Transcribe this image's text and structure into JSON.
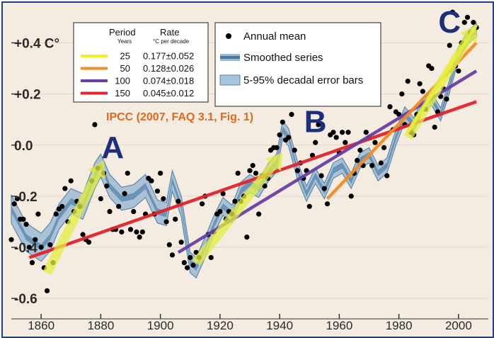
{
  "chart_data": {
    "type": "scatter",
    "x_ticks": [
      "1860",
      "1880",
      "1900",
      "1920",
      "1940",
      "1960",
      "1980",
      "2000"
    ],
    "y_ticks": [
      "+0.4 C°",
      "+0.2",
      "0.0",
      "-0.2",
      "-0.4",
      "-0.6"
    ],
    "y_tick_values": [
      0.4,
      0.2,
      0.0,
      -0.2,
      -0.4,
      -0.6
    ],
    "xlim": [
      1850,
      2010
    ],
    "ylim": [
      -0.68,
      0.54
    ],
    "source_label": "IPCC (2007, FAQ 3.1, Fig. 1)",
    "annotations": [
      {
        "text": "A",
        "x": 1884,
        "y": -0.05
      },
      {
        "text": "B",
        "x": 1952,
        "y": 0.05
      },
      {
        "text": "C",
        "x": 1997,
        "y": 0.44
      }
    ],
    "legend": [
      {
        "label": "Annual mean",
        "kind": "dot"
      },
      {
        "label": "Smoothed series",
        "kind": "band-line"
      },
      {
        "label": "5-95% decadal error bars",
        "kind": "band"
      }
    ],
    "trend_table": {
      "header_period": "Period",
      "header_rate": "Rate",
      "sub_period": "Years",
      "sub_rate": "°C  per decade",
      "rows": [
        {
          "period": "25",
          "rate": "0.177±0.052",
          "color": "#f5ee1e"
        },
        {
          "period": "50",
          "rate": "0.128±0.026",
          "color": "#f28c28"
        },
        {
          "period": "100",
          "rate": "0.074±0.018",
          "color": "#6a3fa5"
        },
        {
          "period": "150",
          "rate": "0.045±0.012",
          "color": "#e0242c"
        }
      ]
    },
    "trend_lines": [
      {
        "period": "150",
        "color": "#e0242c",
        "x": [
          1856,
          2006
        ],
        "y": [
          -0.44,
          0.17
        ]
      },
      {
        "period": "100",
        "color": "#6a3fa5",
        "x": [
          1906,
          2006
        ],
        "y": [
          -0.42,
          0.29
        ]
      },
      {
        "period": "50",
        "color": "#f28c28",
        "x": [
          1956,
          2006
        ],
        "y": [
          -0.21,
          0.4
        ]
      },
      {
        "period": "25",
        "color": "#f5ee1e",
        "x": [
          1983,
          2006
        ],
        "y": [
          0.05,
          0.47
        ]
      }
    ],
    "arrows": [
      {
        "x": [
          1862,
          1881
        ],
        "y": [
          -0.5,
          -0.06
        ]
      },
      {
        "x": [
          1912,
          1941
        ],
        "y": [
          -0.46,
          -0.03
        ]
      },
      {
        "x": [
          1983,
          2006
        ],
        "y": [
          0.03,
          0.47
        ]
      }
    ],
    "smoothed": {
      "x": [
        1850,
        1855,
        1860,
        1863,
        1866,
        1870,
        1874,
        1878,
        1880,
        1883,
        1887,
        1891,
        1895,
        1899,
        1902,
        1904,
        1907,
        1910,
        1912,
        1915,
        1918,
        1921,
        1924,
        1927,
        1930,
        1933,
        1936,
        1939,
        1941,
        1943,
        1946,
        1949,
        1952,
        1955,
        1958,
        1961,
        1964,
        1967,
        1970,
        1973,
        1976,
        1979,
        1982,
        1985,
        1988,
        1991,
        1994,
        1997,
        2000,
        2003,
        2006
      ],
      "y": [
        -0.25,
        -0.36,
        -0.4,
        -0.36,
        -0.28,
        -0.22,
        -0.24,
        -0.12,
        -0.08,
        -0.16,
        -0.21,
        -0.2,
        -0.16,
        -0.26,
        -0.27,
        -0.14,
        -0.24,
        -0.46,
        -0.48,
        -0.4,
        -0.31,
        -0.24,
        -0.27,
        -0.18,
        -0.15,
        -0.17,
        -0.11,
        -0.07,
        0.06,
        0.03,
        -0.1,
        -0.19,
        -0.12,
        -0.18,
        -0.1,
        -0.08,
        -0.14,
        -0.06,
        -0.04,
        -0.11,
        -0.08,
        0.03,
        0.12,
        0.08,
        0.16,
        0.18,
        0.12,
        0.23,
        0.36,
        0.42,
        0.45
      ],
      "err": [
        0.055,
        0.055,
        0.055,
        0.055,
        0.05,
        0.05,
        0.05,
        0.05,
        0.045,
        0.045,
        0.045,
        0.045,
        0.045,
        0.045,
        0.045,
        0.04,
        0.04,
        0.04,
        0.04,
        0.04,
        0.035,
        0.035,
        0.035,
        0.035,
        0.035,
        0.035,
        0.035,
        0.035,
        0.035,
        0.035,
        0.035,
        0.03,
        0.03,
        0.03,
        0.03,
        0.03,
        0.03,
        0.03,
        0.03,
        0.03,
        0.03,
        0.03,
        0.03,
        0.025,
        0.025,
        0.025,
        0.025,
        0.025,
        0.025,
        0.025,
        0.025
      ]
    },
    "annual_points": {
      "x": [
        1850,
        1851,
        1852,
        1853,
        1854,
        1855,
        1856,
        1857,
        1858,
        1859,
        1860,
        1861,
        1862,
        1863,
        1864,
        1865,
        1866,
        1867,
        1868,
        1869,
        1870,
        1871,
        1872,
        1873,
        1874,
        1875,
        1876,
        1877,
        1878,
        1879,
        1880,
        1881,
        1882,
        1883,
        1884,
        1885,
        1886,
        1887,
        1888,
        1889,
        1890,
        1891,
        1892,
        1893,
        1894,
        1895,
        1896,
        1897,
        1898,
        1899,
        1900,
        1901,
        1902,
        1903,
        1904,
        1905,
        1906,
        1907,
        1908,
        1909,
        1910,
        1911,
        1912,
        1913,
        1914,
        1915,
        1916,
        1917,
        1918,
        1919,
        1920,
        1921,
        1922,
        1923,
        1924,
        1925,
        1926,
        1927,
        1928,
        1929,
        1930,
        1931,
        1932,
        1933,
        1934,
        1935,
        1936,
        1937,
        1938,
        1939,
        1940,
        1941,
        1942,
        1943,
        1944,
        1945,
        1946,
        1947,
        1948,
        1949,
        1950,
        1951,
        1952,
        1953,
        1954,
        1955,
        1956,
        1957,
        1958,
        1959,
        1960,
        1961,
        1962,
        1963,
        1964,
        1965,
        1966,
        1967,
        1968,
        1969,
        1970,
        1971,
        1972,
        1973,
        1974,
        1975,
        1976,
        1977,
        1978,
        1979,
        1980,
        1981,
        1982,
        1983,
        1984,
        1985,
        1986,
        1987,
        1988,
        1989,
        1990,
        1991,
        1992,
        1993,
        1994,
        1995,
        1996,
        1997,
        1998,
        1999,
        2000,
        2001,
        2002,
        2003,
        2004,
        2005,
        2006
      ],
      "y": [
        -0.37,
        -0.23,
        -0.21,
        -0.29,
        -0.29,
        -0.31,
        -0.4,
        -0.46,
        -0.37,
        -0.27,
        -0.4,
        -0.48,
        -0.57,
        -0.39,
        -0.46,
        -0.27,
        -0.25,
        -0.24,
        -0.17,
        -0.3,
        -0.14,
        -0.26,
        -0.22,
        -0.24,
        -0.35,
        -0.37,
        -0.38,
        -0.14,
        0.08,
        -0.09,
        -0.21,
        -0.11,
        -0.16,
        -0.26,
        -0.33,
        -0.33,
        -0.24,
        -0.34,
        -0.19,
        -0.11,
        -0.33,
        -0.26,
        -0.34,
        -0.36,
        -0.34,
        -0.27,
        -0.13,
        -0.14,
        -0.27,
        -0.18,
        -0.11,
        -0.21,
        -0.3,
        -0.39,
        -0.43,
        -0.29,
        -0.22,
        -0.38,
        -0.46,
        -0.48,
        -0.44,
        -0.47,
        -0.42,
        -0.44,
        -0.23,
        -0.2,
        -0.35,
        -0.44,
        -0.34,
        -0.27,
        -0.26,
        -0.19,
        -0.29,
        -0.26,
        -0.27,
        -0.22,
        -0.11,
        -0.22,
        -0.2,
        -0.36,
        -0.1,
        -0.08,
        -0.11,
        -0.27,
        -0.12,
        -0.16,
        -0.13,
        -0.02,
        -0.01,
        -0.01,
        0.04,
        0.09,
        0.02,
        0.03,
        0.12,
        -0.02,
        -0.1,
        -0.07,
        -0.13,
        -0.1,
        -0.24,
        -0.04,
        0.01,
        0.08,
        -0.12,
        -0.17,
        -0.23,
        0.04,
        0.05,
        0.03,
        -0.03,
        0.05,
        0.01,
        0.05,
        -0.2,
        -0.11,
        -0.06,
        -0.02,
        -0.08,
        0.05,
        0.03,
        -0.08,
        0.01,
        0.16,
        -0.07,
        -0.01,
        -0.12,
        0.15,
        0.06,
        0.13,
        0.12,
        0.2,
        0.08,
        0.25,
        0.05,
        0.04,
        0.12,
        0.24,
        0.21,
        0.14,
        0.31,
        0.3,
        0.07,
        0.13,
        0.19,
        0.22,
        0.18,
        0.39,
        0.52,
        0.31,
        0.29,
        0.4,
        0.48,
        0.5,
        0.44,
        0.48,
        0.46
      ]
    }
  }
}
